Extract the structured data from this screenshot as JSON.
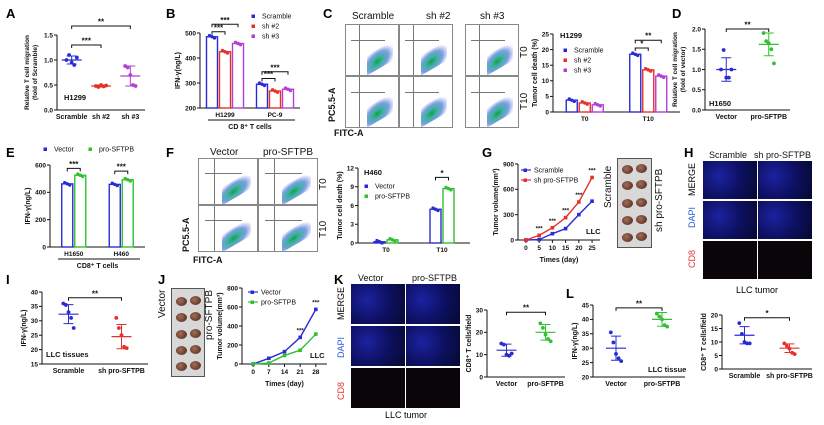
{
  "colors": {
    "blue": "#2b2bd6",
    "red": "#e8302a",
    "purple": "#b23fd4",
    "green": "#32c032"
  },
  "panels": {
    "letters": [
      "A",
      "B",
      "C",
      "D",
      "E",
      "F",
      "G",
      "H",
      "I",
      "J",
      "K",
      "L"
    ],
    "C": {
      "cols": [
        "Scramble",
        "sh #2",
        "sh #3"
      ],
      "rows": [
        "T0",
        "T10"
      ],
      "y_axis": "PC5.5-A",
      "x_axis": "FITC-A"
    },
    "F": {
      "cols": [
        "Vector",
        "pro-SFTPB"
      ],
      "rows": [
        "T0",
        "T10"
      ],
      "y_axis": "PC5.5-A",
      "x_axis": "FITC-A"
    },
    "G": {
      "tumor_labels": [
        "Scramble",
        "sh pro-SFTPB"
      ]
    },
    "H": {
      "cols": [
        "Scramble",
        "sh pro-SFTPB"
      ],
      "rows": [
        "MERGE",
        "DAPI",
        "CD8"
      ],
      "caption": "LLC tumor"
    },
    "J": {
      "tumor_labels": [
        "Vector",
        "pro-SFTPB"
      ]
    },
    "K": {
      "cols": [
        "Vector",
        "pro-SFTPB"
      ],
      "rows": [
        "MERGE",
        "DAPI",
        "CD8"
      ],
      "caption": "LLC tumor"
    }
  },
  "chart_data": [
    {
      "id": "A",
      "type": "scatter",
      "categories": [
        "Scramble",
        "sh #2",
        "sh #3"
      ],
      "colors": [
        "#2b2bd6",
        "#e8302a",
        "#b23fd4"
      ],
      "points": [
        [
          1.0,
          1.1,
          0.95,
          0.9,
          1.05
        ],
        [
          0.48,
          0.46,
          0.5,
          0.47,
          0.49
        ],
        [
          0.88,
          0.85,
          0.7,
          0.5,
          0.48
        ]
      ],
      "mean": [
        1.0,
        0.48,
        0.68
      ],
      "sd": [
        0.08,
        0.02,
        0.2
      ],
      "ylim": [
        0,
        1.5
      ],
      "yticks": [
        "0.0",
        "0.5",
        "1.0",
        "1.5"
      ],
      "ylabel": "Relative T cell migration (fold of Scramble)",
      "annotation": "H1299",
      "sig": [
        {
          "a": 0,
          "b": 1,
          "y": 1.3,
          "text": "***"
        },
        {
          "a": 0,
          "b": 2,
          "y": 1.68,
          "text": "**"
        }
      ]
    },
    {
      "id": "B",
      "type": "bar",
      "categories": [
        "H1299",
        "PC-9"
      ],
      "xlabel": "CD 8⁺ T cells",
      "ylabel": "IFN-γ(ng/L)",
      "ylim": [
        200,
        500
      ],
      "yticks": [
        "200",
        "300",
        "400",
        "500"
      ],
      "series": [
        {
          "name": "Scramble",
          "values": [
            485,
            295
          ],
          "color": "#2b2bd6"
        },
        {
          "name": "sh #2",
          "values": [
            425,
            268
          ],
          "color": "#e8302a"
        },
        {
          "name": "sh #3",
          "values": [
            458,
            275
          ],
          "color": "#b23fd4"
        }
      ],
      "sig": [
        {
          "g": 0,
          "a": 0,
          "b": 1,
          "y": 505,
          "text": "***"
        },
        {
          "g": 0,
          "a": 0,
          "b": 2,
          "y": 535,
          "text": "***"
        },
        {
          "g": 1,
          "a": 0,
          "b": 1,
          "y": 318,
          "text": "***"
        },
        {
          "g": 1,
          "a": 0,
          "b": 2,
          "y": 345,
          "text": "***"
        }
      ]
    },
    {
      "id": "C",
      "type": "bar",
      "categories": [
        "T0",
        "T10"
      ],
      "ylabel": "Tumor cell death (%)",
      "annotation": "H1299",
      "ylim": [
        0,
        25
      ],
      "yticks": [
        "0",
        "5",
        "10",
        "15",
        "20",
        "25"
      ],
      "series": [
        {
          "name": "Scramble",
          "values": [
            3.8,
            18.5
          ],
          "color": "#2b2bd6"
        },
        {
          "name": "sh #2",
          "values": [
            2.9,
            13.5
          ],
          "color": "#e8302a"
        },
        {
          "name": "sh #3",
          "values": [
            2.3,
            11.5
          ],
          "color": "#b23fd4"
        }
      ],
      "sig": [
        {
          "g": 1,
          "a": 0,
          "b": 1,
          "y": 20.5,
          "text": "*"
        },
        {
          "g": 1,
          "a": 0,
          "b": 2,
          "y": 23,
          "text": "**"
        }
      ]
    },
    {
      "id": "D",
      "type": "scatter",
      "categories": [
        "Vector",
        "pro-SFTPB"
      ],
      "colors": [
        "#2b2bd6",
        "#32c032"
      ],
      "points": [
        [
          1.0,
          1.48,
          0.8,
          0.8,
          1.0
        ],
        [
          1.9,
          1.7,
          1.65,
          1.5,
          1.15
        ]
      ],
      "mean": [
        1.0,
        1.62
      ],
      "sd": [
        0.29,
        0.28
      ],
      "ylim": [
        0,
        2
      ],
      "yticks": [
        "0.0",
        "0.5",
        "1.0",
        "1.5",
        "2.0"
      ],
      "ylabel": "Relative T cell migration (fold of vector)",
      "annotation": "H1650",
      "sig": [
        {
          "a": 0,
          "b": 1,
          "y": 2.0,
          "text": "**"
        }
      ]
    },
    {
      "id": "E",
      "type": "bar",
      "categories": [
        "H1650",
        "H460"
      ],
      "xlabel": "CD8⁺ T cells",
      "ylabel": "IFN-γ(ng/L)",
      "ylim": [
        0,
        600
      ],
      "yticks": [
        "0",
        "200",
        "400",
        "600"
      ],
      "series": [
        {
          "name": "Vector",
          "values": [
            462,
            458
          ],
          "color": "#2b2bd6"
        },
        {
          "name": "pro-SFTPB",
          "values": [
            525,
            492
          ],
          "color": "#32c032"
        }
      ],
      "sig": [
        {
          "g": 0,
          "a": 0,
          "b": 1,
          "y": 575,
          "text": "***"
        },
        {
          "g": 1,
          "a": 0,
          "b": 1,
          "y": 555,
          "text": "***"
        }
      ]
    },
    {
      "id": "F",
      "type": "bar",
      "categories": [
        "T0",
        "T10"
      ],
      "ylabel": "Tumor cell death (%)",
      "annotation": "H460",
      "ylim": [
        0,
        12
      ],
      "yticks": [
        "0",
        "3",
        "6",
        "9",
        "12"
      ],
      "series": [
        {
          "name": "Vector",
          "values": [
            0.2,
            5.4
          ],
          "color": "#2b2bd6"
        },
        {
          "name": "pro-SFTPB",
          "values": [
            0.5,
            8.7
          ],
          "color": "#32c032"
        }
      ],
      "sig": [
        {
          "g": 1,
          "a": 0,
          "b": 1,
          "y": 10.5,
          "text": "*"
        }
      ]
    },
    {
      "id": "G",
      "type": "line",
      "x": [
        0,
        5,
        10,
        15,
        20,
        25
      ],
      "xlabel": "Times (day)",
      "ylabel": "Tumor volume(mm³)",
      "annotation": "LLC",
      "ylim": [
        0,
        900
      ],
      "yticks": [
        "0",
        "300",
        "600",
        "900"
      ],
      "xlim": [
        -3,
        28
      ],
      "series": [
        {
          "name": "Scramble",
          "values": [
            0,
            5,
            75,
            135,
            300,
            460
          ],
          "color": "#2b2bd6"
        },
        {
          "name": "sh pro-SFTPB",
          "values": [
            0,
            55,
            145,
            265,
            450,
            740
          ],
          "color": "#e8302a"
        }
      ],
      "stars": [
        {
          "x": 5,
          "text": "***"
        },
        {
          "x": 10,
          "text": "***"
        },
        {
          "x": 15,
          "text": "***"
        },
        {
          "x": 20,
          "text": "***"
        },
        {
          "x": 25,
          "text": "***"
        }
      ]
    },
    {
      "id": "H",
      "type": "scatter",
      "categories": [
        "Scramble",
        "sh pro-SFTPB"
      ],
      "colors": [
        "#2b2bd6",
        "#e8302a"
      ],
      "points": [
        [
          17,
          13,
          10,
          9.5,
          9.5
        ],
        [
          9.5,
          8.5,
          7.5,
          6,
          5.5
        ]
      ],
      "mean": [
        12.5,
        7.7
      ],
      "sd": [
        3.2,
        1.6
      ],
      "ylim": [
        0,
        20
      ],
      "yticks": [
        "0",
        "5",
        "10",
        "15",
        "20"
      ],
      "ylabel": "CD8⁺ T cells/field",
      "sig": [
        {
          "a": 0,
          "b": 1,
          "y": 19,
          "text": "*"
        }
      ]
    },
    {
      "id": "I",
      "type": "scatter",
      "categories": [
        "Scramble",
        "sh pro-SFTPB"
      ],
      "colors": [
        "#2b2bd6",
        "#e8302a"
      ],
      "points": [
        [
          36,
          35.5,
          33,
          31,
          27.5
        ],
        [
          31,
          27.5,
          25,
          21,
          20.5
        ]
      ],
      "mean": [
        32.3,
        24.5
      ],
      "sd": [
        3.3,
        4.2
      ],
      "ylim": [
        15,
        40
      ],
      "yticks": [
        "15",
        "20",
        "25",
        "30",
        "35",
        "40"
      ],
      "ylabel": "IFN-γ(ng/L)",
      "annotation": "LLC tissues",
      "sig": [
        {
          "a": 0,
          "b": 1,
          "y": 38,
          "text": "**"
        }
      ]
    },
    {
      "id": "J",
      "type": "line",
      "x": [
        0,
        7,
        14,
        21,
        28
      ],
      "xlabel": "Times (day)",
      "ylabel": "Tumor volume(mm³)",
      "annotation": "LLC",
      "ylim": [
        0,
        800
      ],
      "yticks": [
        "0",
        "200",
        "400",
        "600",
        "800"
      ],
      "xlim": [
        -5,
        33
      ],
      "series": [
        {
          "name": "Vector",
          "values": [
            0,
            60,
            130,
            280,
            575
          ],
          "color": "#2b2bd6"
        },
        {
          "name": "pro-SFTPB",
          "values": [
            0,
            10,
            90,
            145,
            315
          ],
          "color": "#32c032"
        }
      ],
      "stars": [
        {
          "x": 21,
          "text": "***"
        },
        {
          "x": 28,
          "text": "***"
        }
      ]
    },
    {
      "id": "K",
      "type": "scatter",
      "categories": [
        "Vector",
        "pro-SFTPB"
      ],
      "colors": [
        "#2b2bd6",
        "#32c032"
      ],
      "points": [
        [
          15,
          14.5,
          10,
          9.5,
          10.5
        ],
        [
          24,
          22,
          19,
          17,
          16
        ]
      ],
      "mean": [
        12,
        20
      ],
      "sd": [
        2.7,
        3.5
      ],
      "ylim": [
        0,
        30
      ],
      "yticks": [
        "0",
        "10",
        "20",
        "30"
      ],
      "ylabel": "CD8⁺ T cells/field",
      "sig": [
        {
          "a": 0,
          "b": 1,
          "y": 29,
          "text": "**"
        }
      ]
    },
    {
      "id": "L",
      "type": "scatter",
      "categories": [
        "Vector",
        "pro-SFTPB"
      ],
      "colors": [
        "#2b2bd6",
        "#32c032"
      ],
      "points": [
        [
          35.5,
          32,
          28,
          26.5,
          25.5
        ],
        [
          42,
          41,
          40,
          38,
          37.5
        ]
      ],
      "mean": [
        30,
        40
      ],
      "sd": [
        4.2,
        2.4
      ],
      "ylim": [
        20,
        45
      ],
      "yticks": [
        "20",
        "25",
        "30",
        "35",
        "40",
        "45"
      ],
      "ylabel": "IFN-γ(ng/L)",
      "annotation": "LLC tissue",
      "sig": [
        {
          "a": 0,
          "b": 1,
          "y": 44,
          "text": "**"
        }
      ]
    }
  ]
}
